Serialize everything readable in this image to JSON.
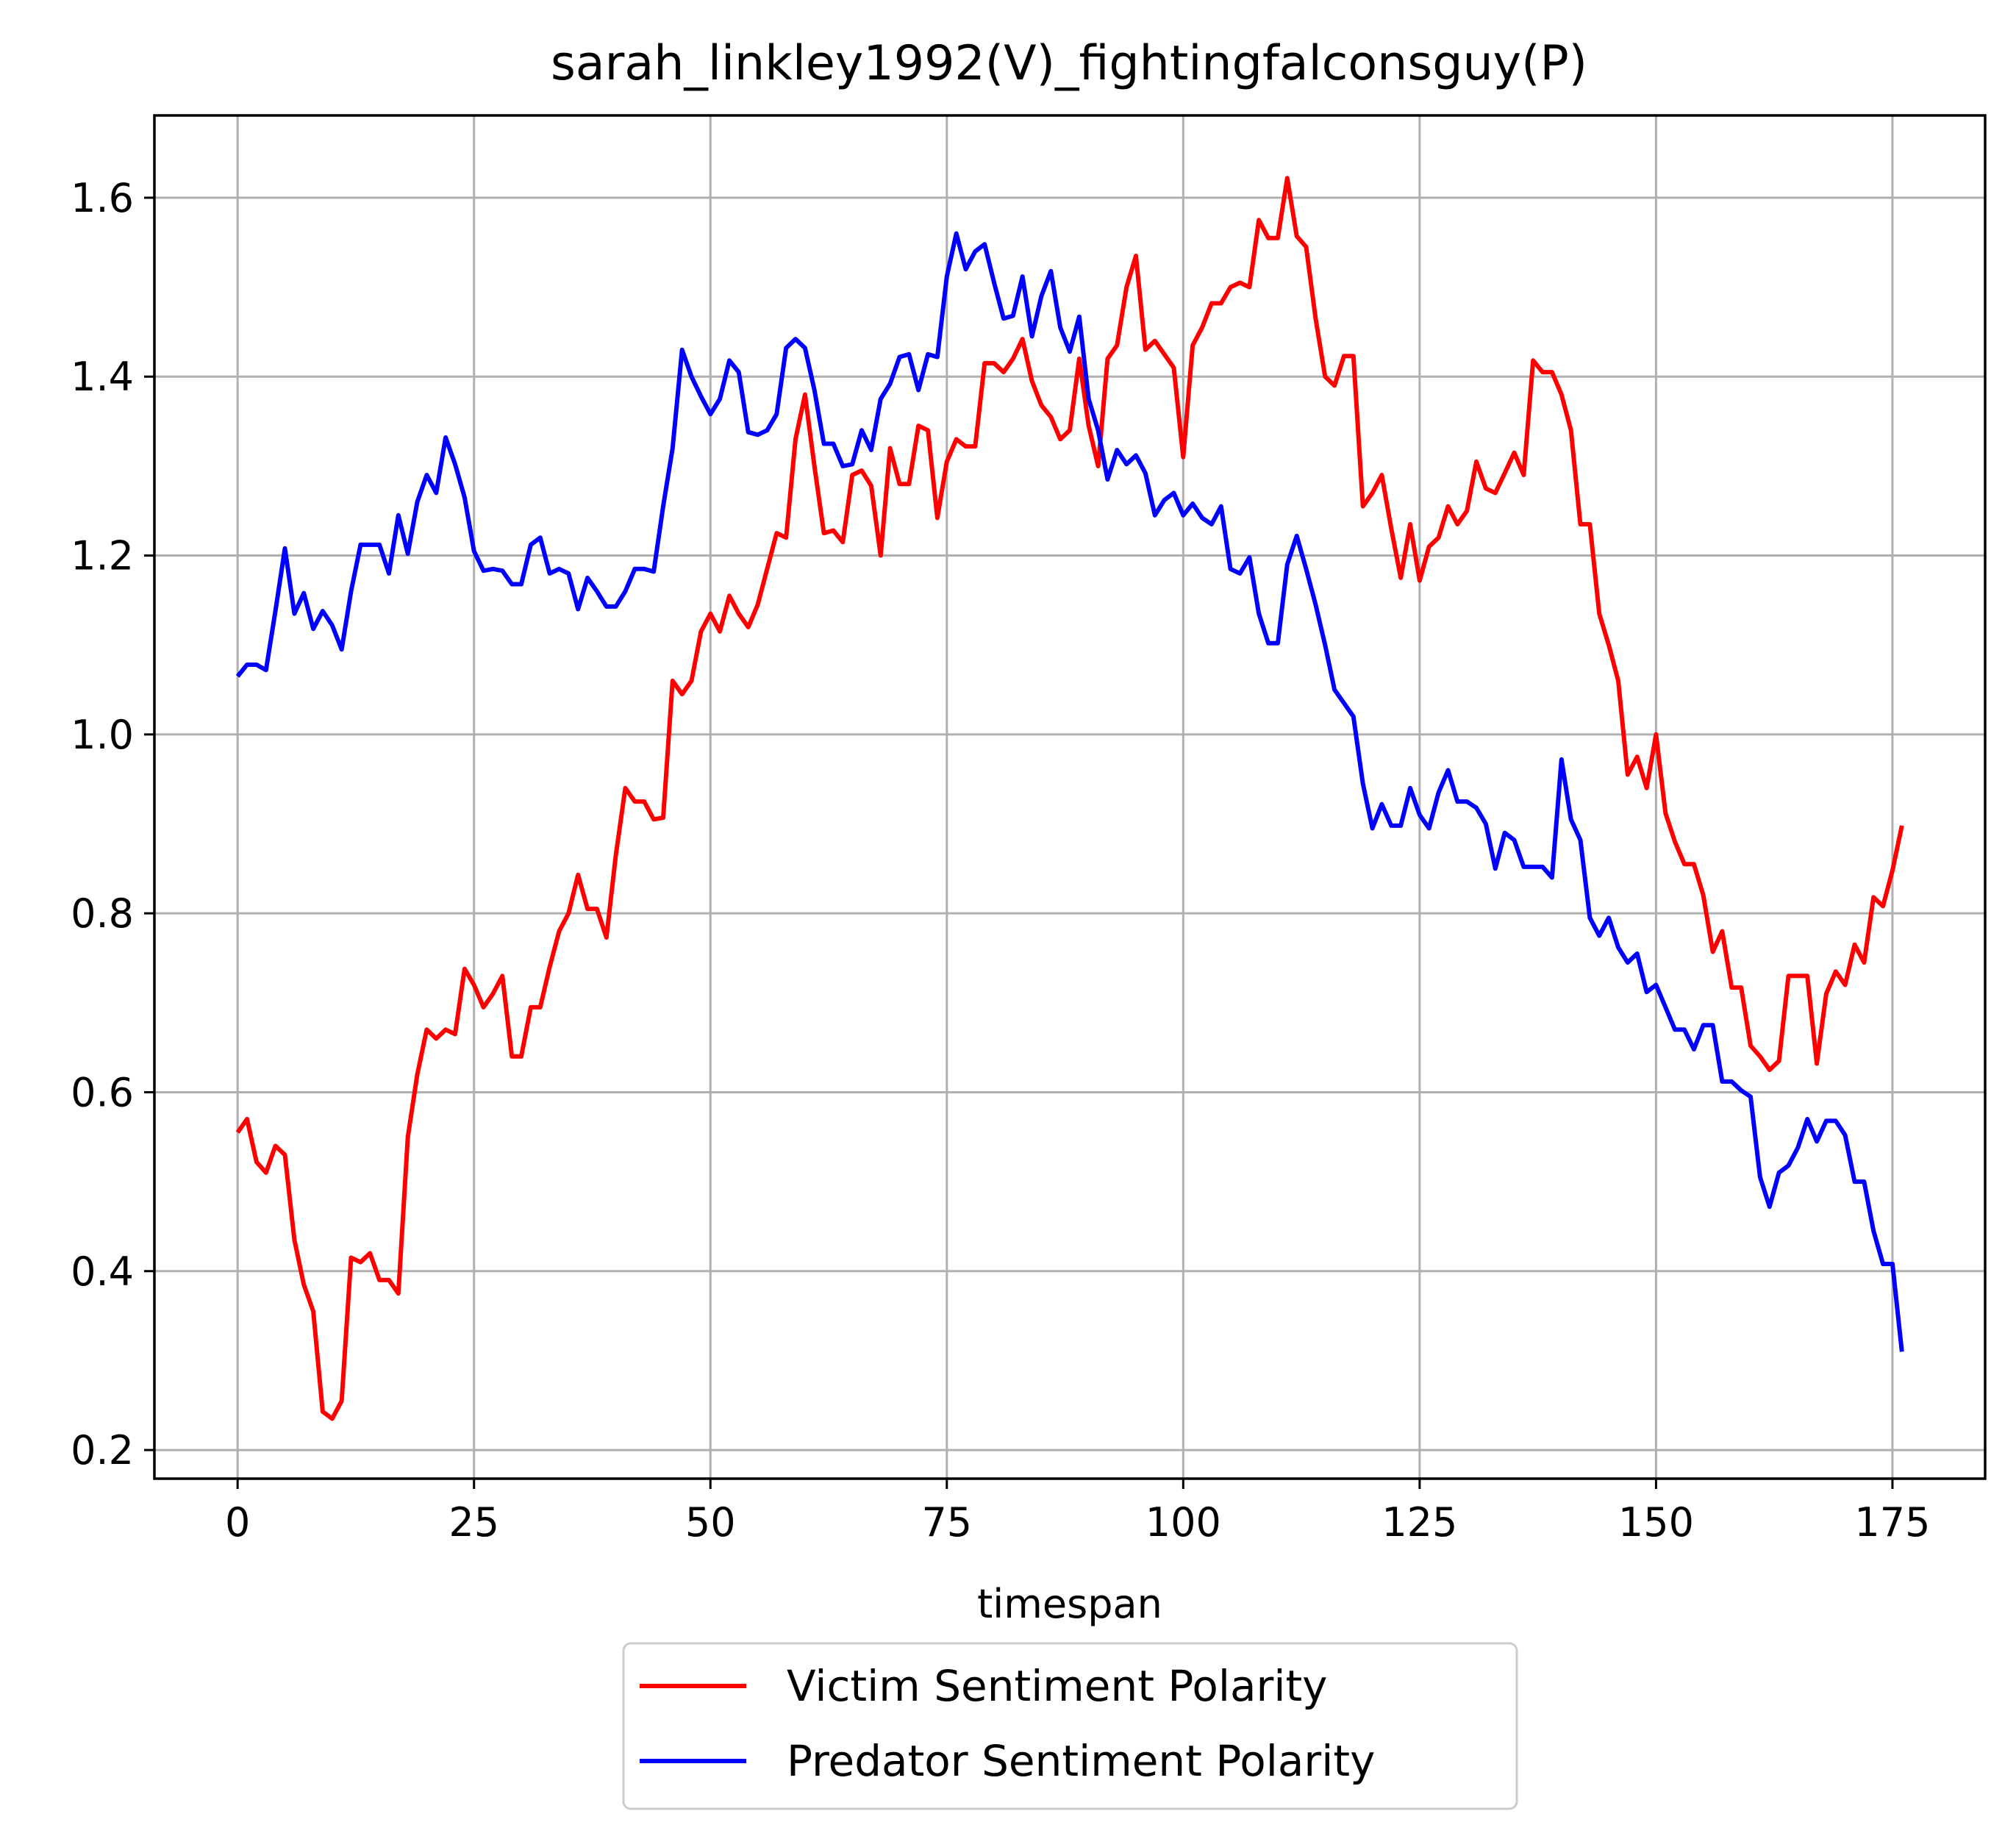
{
  "chart_data": {
    "type": "line",
    "title": "sarah_linkley1992(V)_fightingfalconsguy(P)",
    "xlabel": "timespan",
    "ylabel": "",
    "xlim": [
      -8.8,
      184.8
    ],
    "ylim": [
      0.168,
      1.692
    ],
    "xticks": [
      0,
      25,
      50,
      75,
      100,
      125,
      150,
      175
    ],
    "yticks": [
      0.2,
      0.4,
      0.6,
      0.8,
      1.0,
      1.2,
      1.4,
      1.6
    ],
    "ytick_labels": [
      "0.2",
      "0.4",
      "0.6",
      "0.8",
      "1.0",
      "1.2",
      "1.4",
      "1.6"
    ],
    "grid": true,
    "legend_position": "bottom-center-outside",
    "series": [
      {
        "name": "Victim Sentiment Polarity",
        "color": "#ff0000",
        "values": [
          0.555,
          0.57,
          0.522,
          0.51,
          0.54,
          0.53,
          0.435,
          0.385,
          0.355,
          0.243,
          0.235,
          0.255,
          0.415,
          0.41,
          0.42,
          0.39,
          0.39,
          0.375,
          0.55,
          0.62,
          0.67,
          0.66,
          0.67,
          0.665,
          0.738,
          0.72,
          0.695,
          0.71,
          0.73,
          0.64,
          0.64,
          0.695,
          0.695,
          0.74,
          0.78,
          0.8,
          0.843,
          0.805,
          0.805,
          0.773,
          0.865,
          0.94,
          0.925,
          0.925,
          0.905,
          0.907,
          1.06,
          1.045,
          1.06,
          1.115,
          1.135,
          1.115,
          1.155,
          1.135,
          1.12,
          1.145,
          1.185,
          1.225,
          1.22,
          1.33,
          1.38,
          1.3,
          1.225,
          1.228,
          1.215,
          1.29,
          1.295,
          1.278,
          1.2,
          1.32,
          1.28,
          1.28,
          1.345,
          1.34,
          1.242,
          1.305,
          1.33,
          1.322,
          1.322,
          1.415,
          1.415,
          1.405,
          1.42,
          1.442,
          1.395,
          1.368,
          1.355,
          1.33,
          1.34,
          1.42,
          1.345,
          1.3,
          1.42,
          1.435,
          1.5,
          1.535,
          1.43,
          1.44,
          1.425,
          1.41,
          1.31,
          1.435,
          1.455,
          1.482,
          1.482,
          1.5,
          1.505,
          1.5,
          1.575,
          1.555,
          1.555,
          1.622,
          1.557,
          1.545,
          1.465,
          1.4,
          1.39,
          1.423,
          1.423,
          1.255,
          1.27,
          1.29,
          1.23,
          1.175,
          1.235,
          1.172,
          1.21,
          1.22,
          1.255,
          1.235,
          1.25,
          1.305,
          1.275,
          1.27,
          1.292,
          1.315,
          1.29,
          1.418,
          1.405,
          1.405,
          1.38,
          1.34,
          1.235,
          1.235,
          1.135,
          1.1,
          1.06,
          0.955,
          0.975,
          0.94,
          1.0,
          0.912,
          0.88,
          0.855,
          0.855,
          0.82,
          0.757,
          0.78,
          0.717,
          0.717,
          0.652,
          0.64,
          0.625,
          0.635,
          0.73,
          0.73,
          0.73,
          0.632,
          0.71,
          0.735,
          0.72,
          0.765,
          0.745,
          0.818,
          0.808,
          0.848,
          0.898
        ]
      },
      {
        "name": "Predator Sentiment Polarity",
        "color": "#0000ff",
        "values": [
          1.065,
          1.078,
          1.078,
          1.072,
          1.138,
          1.208,
          1.135,
          1.158,
          1.118,
          1.138,
          1.122,
          1.095,
          1.16,
          1.212,
          1.212,
          1.212,
          1.18,
          1.245,
          1.202,
          1.26,
          1.29,
          1.27,
          1.332,
          1.302,
          1.265,
          1.205,
          1.183,
          1.185,
          1.183,
          1.168,
          1.168,
          1.212,
          1.22,
          1.18,
          1.185,
          1.18,
          1.14,
          1.175,
          1.16,
          1.143,
          1.143,
          1.16,
          1.185,
          1.185,
          1.182,
          1.255,
          1.32,
          1.43,
          1.4,
          1.378,
          1.358,
          1.375,
          1.418,
          1.405,
          1.338,
          1.335,
          1.34,
          1.358,
          1.432,
          1.442,
          1.432,
          1.385,
          1.325,
          1.325,
          1.3,
          1.302,
          1.34,
          1.318,
          1.375,
          1.392,
          1.422,
          1.425,
          1.385,
          1.425,
          1.422,
          1.512,
          1.56,
          1.52,
          1.54,
          1.548,
          1.505,
          1.465,
          1.468,
          1.512,
          1.445,
          1.49,
          1.518,
          1.455,
          1.428,
          1.467,
          1.375,
          1.34,
          1.285,
          1.318,
          1.302,
          1.312,
          1.292,
          1.245,
          1.262,
          1.27,
          1.245,
          1.258,
          1.242,
          1.235,
          1.255,
          1.185,
          1.18,
          1.198,
          1.135,
          1.102,
          1.102,
          1.19,
          1.222,
          1.185,
          1.145,
          1.1,
          1.05,
          1.035,
          1.02,
          0.945,
          0.895,
          0.922,
          0.898,
          0.898,
          0.94,
          0.91,
          0.895,
          0.935,
          0.96,
          0.925,
          0.925,
          0.918,
          0.9,
          0.85,
          0.89,
          0.882,
          0.852,
          0.852,
          0.852,
          0.84,
          0.972,
          0.905,
          0.882,
          0.795,
          0.775,
          0.795,
          0.762,
          0.745,
          0.755,
          0.712,
          0.72,
          0.695,
          0.67,
          0.67,
          0.648,
          0.675,
          0.675,
          0.612,
          0.612,
          0.602,
          0.595,
          0.505,
          0.472,
          0.51,
          0.518,
          0.538,
          0.57,
          0.545,
          0.568,
          0.568,
          0.552,
          0.5,
          0.5,
          0.445,
          0.408,
          0.408,
          0.31
        ]
      }
    ]
  }
}
